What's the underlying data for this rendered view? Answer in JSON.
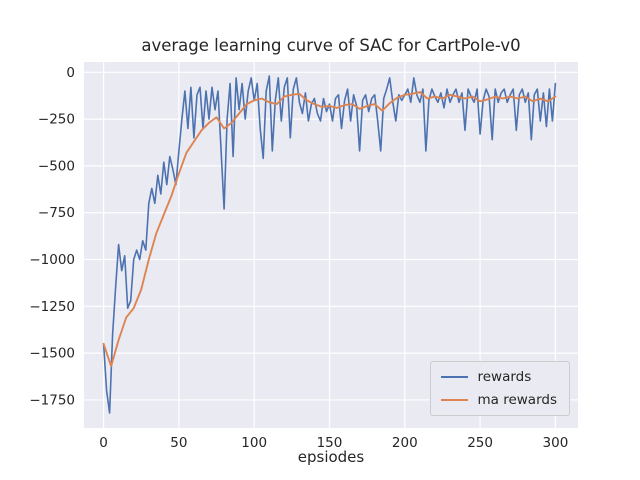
{
  "chart_data": {
    "type": "line",
    "title": "average learning curve of SAC for CartPole-v0",
    "xlabel": "epsiodes",
    "ylabel": "",
    "xlim": [
      -13,
      315
    ],
    "ylim": [
      -1900,
      55
    ],
    "xticks": [
      0,
      50,
      100,
      150,
      200,
      250,
      300
    ],
    "yticks": [
      0,
      -250,
      -500,
      -750,
      -1000,
      -1250,
      -1500,
      -1750
    ],
    "grid": true,
    "grid_color": "#ffffff",
    "background": "#eaeaf2",
    "legend_position": "lower right",
    "series": [
      {
        "name": "rewards",
        "color": "#4c72b0",
        "width": 1.6,
        "x": [
          0,
          2,
          4,
          6,
          8,
          10,
          12,
          14,
          16,
          18,
          20,
          22,
          24,
          26,
          28,
          30,
          32,
          34,
          36,
          38,
          40,
          42,
          44,
          46,
          48,
          50,
          52,
          54,
          56,
          58,
          60,
          62,
          64,
          66,
          68,
          70,
          72,
          74,
          76,
          78,
          80,
          82,
          84,
          86,
          88,
          90,
          92,
          94,
          96,
          98,
          100,
          102,
          104,
          106,
          108,
          110,
          112,
          114,
          116,
          118,
          120,
          122,
          124,
          126,
          128,
          130,
          132,
          134,
          136,
          138,
          140,
          142,
          144,
          146,
          148,
          150,
          152,
          154,
          156,
          158,
          160,
          162,
          164,
          166,
          168,
          170,
          172,
          174,
          176,
          178,
          180,
          182,
          184,
          186,
          188,
          190,
          192,
          194,
          196,
          198,
          200,
          202,
          204,
          206,
          208,
          210,
          212,
          214,
          216,
          218,
          220,
          222,
          224,
          226,
          228,
          230,
          232,
          234,
          236,
          238,
          240,
          242,
          244,
          246,
          248,
          250,
          252,
          254,
          256,
          258,
          260,
          262,
          264,
          266,
          268,
          270,
          272,
          274,
          276,
          278,
          280,
          282,
          284,
          286,
          288,
          290,
          292,
          294,
          296,
          298,
          300
        ],
        "y": [
          -1450,
          -1700,
          -1820,
          -1400,
          -1150,
          -920,
          -1060,
          -980,
          -1260,
          -1220,
          -1000,
          -950,
          -1000,
          -900,
          -950,
          -700,
          -620,
          -700,
          -550,
          -650,
          -480,
          -600,
          -450,
          -520,
          -600,
          -420,
          -250,
          -100,
          -300,
          -80,
          -350,
          -120,
          -80,
          -300,
          -100,
          -250,
          -80,
          -200,
          -100,
          -420,
          -730,
          -250,
          -60,
          -450,
          -30,
          -200,
          -60,
          -250,
          -100,
          -30,
          -150,
          -60,
          -300,
          -460,
          -100,
          -20,
          -420,
          -150,
          -30,
          -260,
          -80,
          -30,
          -350,
          -90,
          -30,
          -160,
          -220,
          -110,
          -260,
          -170,
          -140,
          -220,
          -260,
          -140,
          -210,
          -170,
          -260,
          -140,
          -120,
          -300,
          -150,
          -90,
          -260,
          -120,
          -180,
          -420,
          -150,
          -120,
          -210,
          -140,
          -120,
          -260,
          -420,
          -140,
          -90,
          -30,
          -160,
          -260,
          -120,
          -150,
          -120,
          -90,
          -160,
          -30,
          -120,
          -160,
          -90,
          -420,
          -150,
          -90,
          -130,
          -160,
          -110,
          -190,
          -90,
          -160,
          -120,
          -90,
          -160,
          -110,
          -310,
          -90,
          -130,
          -160,
          -90,
          -330,
          -150,
          -90,
          -130,
          -360,
          -90,
          -160,
          -110,
          -90,
          -160,
          -120,
          -90,
          -310,
          -120,
          -90,
          -160,
          -110,
          -360,
          -120,
          -90,
          -260,
          -110,
          -290,
          -90,
          -260,
          -60
        ]
      },
      {
        "name": "ma rewards",
        "color": "#dd8452",
        "width": 1.9,
        "x": [
          0,
          5,
          10,
          15,
          20,
          25,
          30,
          35,
          40,
          45,
          50,
          55,
          60,
          65,
          70,
          75,
          80,
          85,
          90,
          95,
          100,
          105,
          110,
          115,
          120,
          125,
          130,
          135,
          140,
          145,
          150,
          155,
          160,
          165,
          170,
          175,
          180,
          185,
          190,
          195,
          200,
          205,
          210,
          215,
          220,
          225,
          230,
          235,
          240,
          245,
          250,
          255,
          260,
          265,
          270,
          275,
          280,
          285,
          290,
          295,
          300
        ],
        "y": [
          -1450,
          -1570,
          -1430,
          -1310,
          -1260,
          -1160,
          -1000,
          -860,
          -760,
          -660,
          -540,
          -430,
          -370,
          -310,
          -270,
          -240,
          -300,
          -270,
          -220,
          -170,
          -150,
          -140,
          -160,
          -170,
          -130,
          -120,
          -115,
          -150,
          -170,
          -185,
          -180,
          -190,
          -175,
          -170,
          -195,
          -180,
          -170,
          -205,
          -165,
          -135,
          -120,
          -115,
          -105,
          -140,
          -130,
          -140,
          -120,
          -130,
          -140,
          -130,
          -155,
          -145,
          -130,
          -140,
          -130,
          -140,
          -130,
          -155,
          -140,
          -155,
          -130
        ]
      }
    ]
  }
}
